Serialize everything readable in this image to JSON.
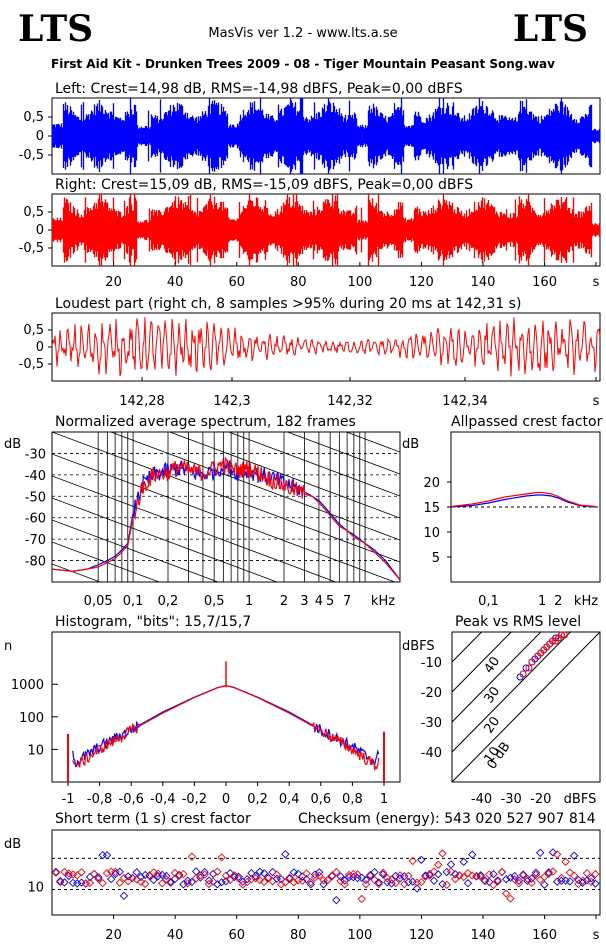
{
  "header": {
    "logo_left": "LTS",
    "logo_right": "LTS",
    "app_title": "MasVis ver 1.2 - www.lts.a.se",
    "file_title": "First Aid Kit - Drunken Trees 2009 - 08 - Tiger Mountain Peasant Song.wav"
  },
  "colors": {
    "left": "#0000ff",
    "right": "#ff0000",
    "background": "#ffffff",
    "axis": "#000000"
  },
  "panels": {
    "left_title": "Left: Crest=14,98 dB, RMS=-14,98 dBFS, Peak=0,00 dBFS",
    "right_title": "Right: Crest=15,09 dB, RMS=-15,09 dBFS, Peak=0,00 dBFS",
    "loudest_title": "Loudest part (right ch, 8 samples >95% during 20 ms at 142,31 s)",
    "spectrum_title": "Normalized average spectrum, 182 frames",
    "allpass_title": "Allpassed crest factor",
    "histogram_title": "Histogram, \"bits\": 15,7/15,7",
    "peakrms_title": "Peak vs RMS level",
    "shortterm_title": "Short term (1 s) crest factor",
    "checksum": "Checksum (energy):   543 020 527 907 814"
  },
  "chart_data": [
    {
      "type": "area",
      "name": "left-waveform",
      "ylim": [
        -1,
        1
      ],
      "yticks": [
        "0,5",
        "0",
        "-0,5"
      ],
      "xlim": [
        0,
        178
      ],
      "series": [
        {
          "name": "Left",
          "color": "#0000ff"
        }
      ]
    },
    {
      "type": "area",
      "name": "right-waveform",
      "ylim": [
        -1,
        1
      ],
      "yticks": [
        "0,5",
        "0",
        "-0,5"
      ],
      "xlim": [
        0,
        178
      ],
      "xticks": [
        "20",
        "40",
        "60",
        "80",
        "100",
        "120",
        "140",
        "160",
        "s"
      ],
      "series": [
        {
          "name": "Right",
          "color": "#ff0000"
        }
      ]
    },
    {
      "type": "line",
      "name": "loudest-part",
      "ylim": [
        -1,
        1
      ],
      "yticks": [
        "0,5",
        "0",
        "-0,5"
      ],
      "xticks": [
        "142,28",
        "142,3",
        "142,32",
        "142,34",
        "s"
      ]
    },
    {
      "type": "line",
      "name": "spectrum",
      "ylabel": "dB",
      "yticks": [
        "-30",
        "-40",
        "-50",
        "-60",
        "-70",
        "-80"
      ],
      "xticks": [
        "0,05",
        "0,1",
        "0,2",
        "0,5",
        "1",
        "2",
        "3",
        "4",
        "5",
        "7",
        "kHz"
      ],
      "x": [
        0.02,
        0.03,
        0.04,
        0.05,
        0.06,
        0.07,
        0.08,
        0.09,
        0.1,
        0.12,
        0.15,
        0.2,
        0.25,
        0.3,
        0.4,
        0.5,
        0.6,
        0.7,
        0.8,
        1.0,
        1.2,
        1.5,
        2.0,
        2.5,
        3.0,
        3.5,
        4.0,
        4.5,
        5.0,
        6.0,
        7.0,
        8.0,
        10.0,
        12.0,
        15.0,
        20.0
      ],
      "series": [
        {
          "name": "Left",
          "values": [
            -84,
            -85,
            -84,
            -82,
            -80,
            -78,
            -75,
            -72,
            -58,
            -45,
            -40,
            -38,
            -37,
            -38,
            -40,
            -38,
            -36,
            -37,
            -39,
            -38,
            -40,
            -41,
            -44,
            -46,
            -48,
            -50,
            -52,
            -55,
            -58,
            -63,
            -66,
            -68,
            -72,
            -75,
            -80,
            -89
          ]
        },
        {
          "name": "Right",
          "values": [
            -84,
            -85,
            -84,
            -83,
            -81,
            -79,
            -76,
            -73,
            -60,
            -46,
            -40,
            -39,
            -36,
            -38,
            -39,
            -37,
            -35,
            -37,
            -38,
            -37,
            -39,
            -42,
            -45,
            -47,
            -49,
            -50,
            -53,
            -56,
            -59,
            -64,
            -66,
            -69,
            -72,
            -76,
            -81,
            -89
          ]
        }
      ]
    },
    {
      "type": "line",
      "name": "allpassed-crest",
      "ylabel": "dB",
      "yticks": [
        "20",
        "15",
        "10",
        "5"
      ],
      "xticks": [
        "0,1",
        "1",
        "2",
        "kHz"
      ],
      "x": [
        0.02,
        0.05,
        0.1,
        0.2,
        0.5,
        0.8,
        1.0,
        1.5,
        2.0,
        3.0,
        5.0,
        10.0
      ],
      "series": [
        {
          "name": "Left",
          "values": [
            15.0,
            15.3,
            15.8,
            16.5,
            17.2,
            17.4,
            17.4,
            17.2,
            16.8,
            16.0,
            15.3,
            15.0
          ]
        },
        {
          "name": "Right",
          "values": [
            15.1,
            15.6,
            16.2,
            17.0,
            17.6,
            17.9,
            17.9,
            17.6,
            17.1,
            16.2,
            15.4,
            15.1
          ]
        }
      ]
    },
    {
      "type": "line",
      "name": "histogram",
      "ylabel": "n",
      "yticks": [
        "1000",
        "100",
        "10"
      ],
      "xticks": [
        "-1",
        "-0,8",
        "-0,6",
        "-0,4",
        "-0,2",
        "0",
        "0,2",
        "0,4",
        "0,6",
        "0,8",
        "1"
      ],
      "x": [
        -1.0,
        -0.95,
        -0.8,
        -0.6,
        -0.4,
        -0.2,
        -0.05,
        0.0,
        0.05,
        0.2,
        0.4,
        0.6,
        0.8,
        0.95,
        1.0
      ],
      "series": [
        {
          "name": "Left",
          "values": [
            30,
            4,
            12,
            40,
            140,
            400,
            800,
            900,
            800,
            400,
            140,
            40,
            12,
            4,
            30
          ]
        },
        {
          "name": "Right",
          "values": [
            20,
            3,
            10,
            38,
            130,
            390,
            790,
            900,
            790,
            390,
            130,
            38,
            10,
            3,
            20
          ]
        }
      ]
    },
    {
      "type": "scatter",
      "name": "peak-vs-rms",
      "ylabel": "dBFS",
      "xlabel": "dBFS",
      "yticks": [
        "-10",
        "-20",
        "-30",
        "-40"
      ],
      "xticks": [
        "-40",
        "-30",
        "-20"
      ],
      "diagonals": [
        "40",
        "30",
        "20",
        "10",
        "0 dB"
      ],
      "series": [
        {
          "name": "Left",
          "x": [
            -27,
            -25,
            -23,
            -22,
            -21,
            -20,
            -19,
            -18,
            -17,
            -16,
            -15,
            -14,
            -13
          ],
          "y": [
            -15,
            -12,
            -10,
            -9,
            -8,
            -7,
            -6,
            -5,
            -4,
            -3,
            -2,
            -2,
            -1
          ]
        },
        {
          "name": "Right",
          "x": [
            -26,
            -24,
            -23,
            -21,
            -20,
            -19,
            -18,
            -17,
            -16,
            -15,
            -14,
            -13,
            -12
          ],
          "y": [
            -14,
            -12,
            -10,
            -8,
            -7,
            -6,
            -5,
            -4,
            -3,
            -3,
            -2,
            -1,
            -1
          ]
        }
      ]
    },
    {
      "type": "scatter",
      "name": "short-term-crest",
      "ylabel": "dB",
      "yticks": [
        "10"
      ],
      "xticks": [
        "20",
        "40",
        "60",
        "80",
        "100",
        "120",
        "140",
        "160",
        "s"
      ],
      "ylim": [
        5,
        20
      ]
    }
  ]
}
